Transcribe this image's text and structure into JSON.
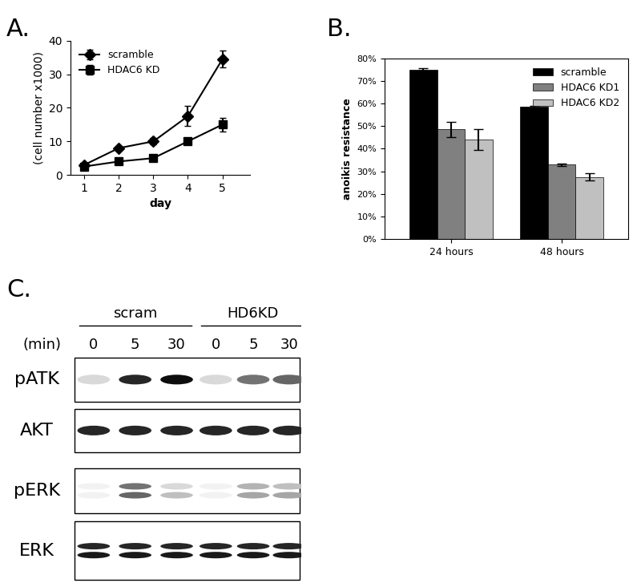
{
  "chart_data": [
    {
      "panel": "A.",
      "type": "line",
      "x": [
        1,
        2,
        3,
        4,
        5
      ],
      "x_label": "day",
      "y_label": "(cell number x1000)",
      "xlim": [
        0.6,
        5.8
      ],
      "xticks": [
        1,
        2,
        3,
        4,
        5
      ],
      "ylim": [
        0,
        40
      ],
      "yticks": [
        0,
        10,
        20,
        30,
        40
      ],
      "grid": false,
      "legend": "upper left",
      "series": [
        {
          "name": "scramble",
          "color": "#000000",
          "marker": "diamond",
          "values": [
            3,
            8,
            10,
            17.5,
            34.5
          ],
          "errors": [
            0.3,
            0.5,
            1,
            3,
            2.5
          ]
        },
        {
          "name": "HDAC6 KD",
          "color": "#000000",
          "marker": "square",
          "values": [
            2.5,
            4,
            5,
            10,
            15
          ],
          "errors": [
            0.2,
            0.3,
            0.5,
            1,
            2
          ]
        }
      ]
    },
    {
      "panel": "B.",
      "type": "bar",
      "categories": [
        "24 hours",
        "48 hours"
      ],
      "y_label": "anoikis resistance",
      "ylim": [
        0,
        80
      ],
      "yticks": [
        {
          "value": 0,
          "label": "0%"
        },
        {
          "value": 10,
          "label": "10%"
        },
        {
          "value": 20,
          "label": "20%"
        },
        {
          "value": 30,
          "label": "30%"
        },
        {
          "value": 40,
          "label": "40%"
        },
        {
          "value": 50,
          "label": "50%"
        },
        {
          "value": 60,
          "label": "60%"
        },
        {
          "value": 70,
          "label": "70%"
        },
        {
          "value": 80,
          "label": "80%"
        }
      ],
      "grid": false,
      "legend": "upper right",
      "series": [
        {
          "name": "scramble",
          "color": "#000000",
          "values": [
            75,
            58.5
          ],
          "errors": [
            0.5,
            0.5
          ]
        },
        {
          "name": "HDAC6 KD1",
          "color": "#808080",
          "values": [
            48.5,
            33
          ],
          "errors": [
            3.5,
            0.5
          ]
        },
        {
          "name": "HDAC6 KD2",
          "color": "#c0c0c0",
          "values": [
            44,
            27.5
          ],
          "errors": [
            4.5,
            1.5
          ]
        }
      ]
    }
  ],
  "blot": {
    "panel": "C.",
    "time_label": "(min)",
    "groups": [
      {
        "name": "scram",
        "times": [
          0,
          5,
          30
        ]
      },
      {
        "name": "HD6KD",
        "times": [
          0,
          5,
          30
        ]
      }
    ],
    "rows": [
      {
        "label": "pATK",
        "intensities": [
          [
            0.15
          ],
          [
            0.85
          ],
          [
            0.95
          ],
          [
            0.15
          ],
          [
            0.55
          ],
          [
            0.6
          ]
        ]
      },
      {
        "label": "AKT",
        "intensities": [
          [
            0.85
          ],
          [
            0.85
          ],
          [
            0.85
          ],
          [
            0.85
          ],
          [
            0.85
          ],
          [
            0.85
          ]
        ]
      },
      {
        "label": "pERK",
        "intensities": [
          [
            0.05,
            0.05
          ],
          [
            0.55,
            0.6
          ],
          [
            0.15,
            0.25
          ],
          [
            0.05,
            0.05
          ],
          [
            0.3,
            0.35
          ],
          [
            0.25,
            0.35
          ]
        ]
      },
      {
        "label": "ERK",
        "intensities": [
          [
            0.85,
            0.9
          ],
          [
            0.85,
            0.9
          ],
          [
            0.85,
            0.9
          ],
          [
            0.85,
            0.9
          ],
          [
            0.85,
            0.9
          ],
          [
            0.85,
            0.9
          ]
        ]
      }
    ]
  }
}
